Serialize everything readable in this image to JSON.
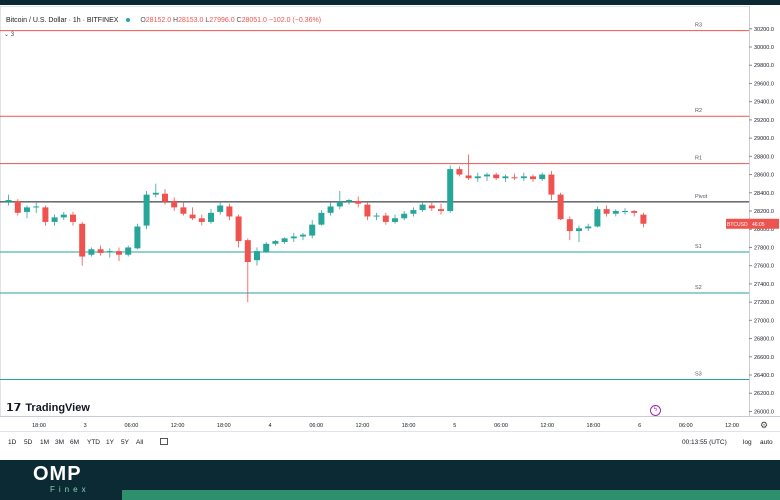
{
  "header": {
    "title": "Bitcoin / U.S. Dollar · 1h · BITFINEX",
    "ohlc": {
      "o": "28152.0",
      "h": "28153.0",
      "l": "27996.0",
      "c": "28051.0",
      "change": "−102.0 (−0.36%)"
    },
    "collapse_count": "3"
  },
  "chart_data": {
    "type": "candlestick",
    "symbol": "BTCUSD",
    "price_tag": "46:05",
    "ylim": [
      25950,
      30450
    ],
    "y_ticks": [
      26000,
      26200,
      26400,
      26600,
      26800,
      27000,
      27200,
      27400,
      27600,
      27800,
      28000,
      28200,
      28400,
      28600,
      28800,
      29000,
      29200,
      29400,
      29600,
      29800,
      30000,
      30200
    ],
    "x_ticks": [
      "18:00",
      "3",
      "06:00",
      "12:00",
      "18:00",
      "4",
      "06:00",
      "12:00",
      "18:00",
      "5",
      "06:00",
      "12:00",
      "18:00",
      "6",
      "06:00",
      "12:00"
    ],
    "pivot_levels": [
      {
        "name": "R3",
        "value": 30180
      },
      {
        "name": "R2",
        "value": 29240
      },
      {
        "name": "R1",
        "value": 28720
      },
      {
        "name": "Pivot",
        "value": 28300
      },
      {
        "name": "S1",
        "value": 27750
      },
      {
        "name": "S2",
        "value": 27300
      },
      {
        "name": "S3",
        "value": 26350
      }
    ],
    "candles": [
      [
        28300,
        28380,
        28260,
        28320
      ],
      [
        28310,
        28330,
        28150,
        28180
      ],
      [
        28190,
        28260,
        28120,
        28240
      ],
      [
        28240,
        28290,
        28180,
        28250
      ],
      [
        28240,
        28260,
        28040,
        28080
      ],
      [
        28080,
        28160,
        28040,
        28130
      ],
      [
        28130,
        28190,
        28100,
        28160
      ],
      [
        28160,
        28190,
        28040,
        28080
      ],
      [
        28060,
        28080,
        27600,
        27700
      ],
      [
        27720,
        27800,
        27700,
        27780
      ],
      [
        27780,
        27820,
        27710,
        27740
      ],
      [
        27750,
        27790,
        27690,
        27760
      ],
      [
        27760,
        27800,
        27650,
        27720
      ],
      [
        27720,
        27820,
        27700,
        27800
      ],
      [
        27790,
        28060,
        27780,
        28030
      ],
      [
        28040,
        28420,
        28000,
        28380
      ],
      [
        28380,
        28500,
        28350,
        28400
      ],
      [
        28390,
        28440,
        28270,
        28300
      ],
      [
        28310,
        28350,
        28200,
        28240
      ],
      [
        28240,
        28300,
        28150,
        28170
      ],
      [
        28160,
        28240,
        28100,
        28120
      ],
      [
        28120,
        28160,
        28040,
        28080
      ],
      [
        28080,
        28220,
        28060,
        28180
      ],
      [
        28190,
        28300,
        28160,
        28260
      ],
      [
        28250,
        28280,
        28100,
        28140
      ],
      [
        28140,
        28160,
        27800,
        27870
      ],
      [
        27880,
        27900,
        27200,
        27640
      ],
      [
        27660,
        27800,
        27600,
        27760
      ],
      [
        27750,
        27860,
        27740,
        27840
      ],
      [
        27840,
        27880,
        27820,
        27870
      ],
      [
        27860,
        27910,
        27840,
        27900
      ],
      [
        27900,
        27960,
        27860,
        27920
      ],
      [
        27920,
        27960,
        27880,
        27940
      ],
      [
        27930,
        28100,
        27900,
        28050
      ],
      [
        28050,
        28210,
        28040,
        28180
      ],
      [
        28180,
        28300,
        28150,
        28250
      ],
      [
        28250,
        28420,
        28220,
        28300
      ],
      [
        28300,
        28330,
        28270,
        28320
      ],
      [
        28310,
        28360,
        28240,
        28280
      ],
      [
        28270,
        28290,
        28100,
        28140
      ],
      [
        28140,
        28180,
        28100,
        28150
      ],
      [
        28150,
        28180,
        28050,
        28080
      ],
      [
        28080,
        28160,
        28060,
        28120
      ],
      [
        28120,
        28200,
        28100,
        28170
      ],
      [
        28170,
        28240,
        28140,
        28210
      ],
      [
        28210,
        28290,
        28190,
        28270
      ],
      [
        28260,
        28290,
        28200,
        28230
      ],
      [
        28220,
        28280,
        28160,
        28200
      ],
      [
        28200,
        28700,
        28180,
        28660
      ],
      [
        28660,
        28690,
        28580,
        28600
      ],
      [
        28590,
        28820,
        28540,
        28560
      ],
      [
        28560,
        28620,
        28520,
        28580
      ],
      [
        28580,
        28620,
        28530,
        28600
      ],
      [
        28600,
        28620,
        28540,
        28560
      ],
      [
        28560,
        28600,
        28520,
        28580
      ],
      [
        28570,
        28610,
        28540,
        28560
      ],
      [
        28560,
        28620,
        28530,
        28580
      ],
      [
        28580,
        28600,
        28520,
        28550
      ],
      [
        28550,
        28620,
        28530,
        28600
      ],
      [
        28600,
        28640,
        28320,
        28380
      ],
      [
        28380,
        28400,
        28100,
        28110
      ],
      [
        28110,
        28140,
        27880,
        27980
      ],
      [
        27980,
        28040,
        27860,
        28010
      ],
      [
        28010,
        28060,
        27980,
        28030
      ],
      [
        28030,
        28250,
        28020,
        28220
      ],
      [
        28220,
        28260,
        28140,
        28170
      ],
      [
        28170,
        28220,
        28140,
        28200
      ],
      [
        28190,
        28230,
        28160,
        28200
      ],
      [
        28200,
        28210,
        28140,
        28180
      ],
      [
        28160,
        28180,
        28020,
        28060
      ]
    ]
  },
  "watermark": {
    "brand": "TradingView"
  },
  "bottom_bar": {
    "ranges": [
      "1D",
      "5D",
      "1M",
      "3M",
      "6M",
      "YTD",
      "1Y",
      "5Y",
      "All"
    ],
    "time": "00:13:55 (UTC)",
    "log_label": "log",
    "auto_label": "auto"
  },
  "footer": {
    "brand": "OMP",
    "sub": "Finex"
  },
  "colors": {
    "up": "#26a69a",
    "down": "#ef5350",
    "resistance": "#ef5350",
    "support": "#26a69a",
    "pivot": "#131722",
    "footer_bg": "#0b2a33",
    "footer_accent": "#2e8f6e"
  }
}
